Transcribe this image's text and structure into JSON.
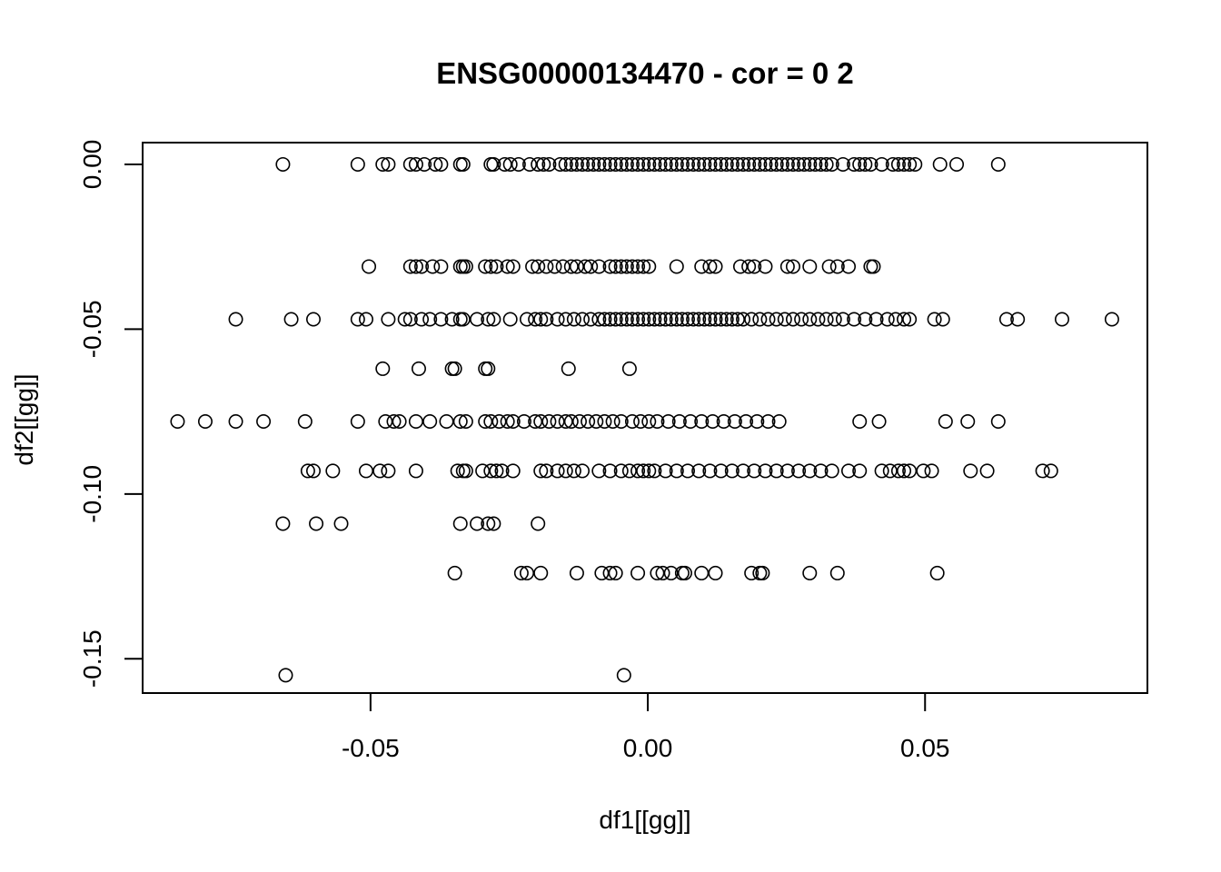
{
  "chart_data": {
    "type": "scatter",
    "title": "ENSG00000134470  - cor =  0 2",
    "xlabel": "df1[[gg]]",
    "ylabel": "df2[[gg]]",
    "xlim": [
      -0.0911,
      0.0901
    ],
    "ylim": [
      -0.1604,
      0.0066
    ],
    "x_ticks": [
      {
        "value": -0.05,
        "label": "-0.05"
      },
      {
        "value": 0.0,
        "label": "0.00"
      },
      {
        "value": 0.05,
        "label": "0.05"
      }
    ],
    "y_ticks": [
      {
        "value": 0.0,
        "label": "0.00"
      },
      {
        "value": -0.05,
        "label": "-0.05"
      },
      {
        "value": -0.1,
        "label": "-0.10"
      },
      {
        "value": -0.15,
        "label": "-0.15"
      }
    ],
    "grid": false,
    "legend": "none",
    "marker": "open-circle",
    "series": [
      {
        "rows": [
          {
            "y": 0.0,
            "x": [
              -0.0658,
              -0.0523,
              -0.0478,
              -0.0468,
              -0.0428,
              -0.0418,
              -0.0403,
              -0.0383,
              -0.0373,
              -0.0338,
              -0.0333,
              -0.0283,
              -0.0278,
              -0.0258,
              -0.0248,
              -0.0233,
              -0.0213,
              -0.0198,
              -0.0188,
              -0.0178,
              -0.0158,
              -0.0148,
              -0.0138,
              -0.0128,
              -0.0118,
              -0.0108,
              -0.0098,
              -0.0088,
              -0.0078,
              -0.0068,
              -0.0058,
              -0.0048,
              -0.0038,
              -0.0028,
              -0.0018,
              -0.0008,
              0.0002,
              0.0012,
              0.0022,
              0.0032,
              0.0042,
              0.0052,
              0.0062,
              0.0072,
              0.0082,
              0.0092,
              0.0102,
              0.0112,
              0.0122,
              0.0132,
              0.0142,
              0.0152,
              0.0162,
              0.0172,
              0.0182,
              0.0192,
              0.0202,
              0.0212,
              0.0222,
              0.0232,
              0.0242,
              0.0252,
              0.0262,
              0.0272,
              0.0282,
              0.0292,
              0.0302,
              0.0312,
              0.0322,
              0.0332,
              0.0352,
              0.0372,
              0.0382,
              0.0392,
              0.0402,
              0.0422,
              0.0442,
              0.0452,
              0.0462,
              0.0472,
              0.0482,
              0.0527,
              0.0557,
              0.0632
            ]
          },
          {
            "y": -0.031,
            "x": [
              -0.0503,
              -0.0428,
              -0.0418,
              -0.0408,
              -0.0388,
              -0.0373,
              -0.0338,
              -0.0333,
              -0.0328,
              -0.0293,
              -0.0283,
              -0.0273,
              -0.0253,
              -0.0243,
              -0.0208,
              -0.0198,
              -0.0183,
              -0.0168,
              -0.0153,
              -0.0138,
              -0.0128,
              -0.0113,
              -0.0103,
              -0.0088,
              -0.0068,
              -0.0058,
              -0.0048,
              -0.0038,
              -0.0028,
              -0.0018,
              -0.0008,
              0.0002,
              0.0052,
              0.0097,
              0.0112,
              0.0122,
              0.0167,
              0.0182,
              0.0192,
              0.0212,
              0.0252,
              0.0262,
              0.0292,
              0.0327,
              0.0342,
              0.0362,
              0.0402,
              0.0407
            ]
          },
          {
            "y": -0.047,
            "x": [
              -0.0743,
              -0.0643,
              -0.0603,
              -0.0523,
              -0.0508,
              -0.0468,
              -0.0438,
              -0.0428,
              -0.0408,
              -0.0393,
              -0.0373,
              -0.0353,
              -0.0338,
              -0.0333,
              -0.0308,
              -0.0288,
              -0.0278,
              -0.0248,
              -0.0218,
              -0.0203,
              -0.0193,
              -0.0183,
              -0.0163,
              -0.0148,
              -0.0133,
              -0.0118,
              -0.0103,
              -0.0088,
              -0.0078,
              -0.0068,
              -0.0058,
              -0.0048,
              -0.0038,
              -0.0028,
              -0.0018,
              -0.0008,
              0.0002,
              0.0012,
              0.0022,
              0.0032,
              0.0042,
              0.0052,
              0.0062,
              0.0072,
              0.0082,
              0.0092,
              0.0102,
              0.0112,
              0.0122,
              0.0132,
              0.0142,
              0.0152,
              0.0162,
              0.0172,
              0.0187,
              0.0202,
              0.0217,
              0.0232,
              0.0247,
              0.0262,
              0.0277,
              0.0292,
              0.0307,
              0.0322,
              0.0337,
              0.0352,
              0.0372,
              0.0392,
              0.0412,
              0.0432,
              0.0447,
              0.0462,
              0.0472,
              0.0517,
              0.0532,
              0.0647,
              0.0667,
              0.0747,
              0.0837
            ]
          },
          {
            "y": -0.062,
            "x": [
              -0.0478,
              -0.0413,
              -0.0353,
              -0.0348,
              -0.0293,
              -0.0288,
              -0.0143,
              -0.0033
            ]
          },
          {
            "y": -0.078,
            "x": [
              -0.0848,
              -0.0798,
              -0.0743,
              -0.0693,
              -0.0618,
              -0.0523,
              -0.0473,
              -0.0458,
              -0.0448,
              -0.0418,
              -0.0393,
              -0.0363,
              -0.0338,
              -0.0328,
              -0.0293,
              -0.0283,
              -0.0268,
              -0.0253,
              -0.0243,
              -0.0223,
              -0.0203,
              -0.0193,
              -0.0178,
              -0.0163,
              -0.0148,
              -0.0138,
              -0.0123,
              -0.0108,
              -0.0093,
              -0.0078,
              -0.0063,
              -0.0048,
              -0.0028,
              -0.0013,
              0.0002,
              0.0017,
              0.0037,
              0.0057,
              0.0077,
              0.0097,
              0.0117,
              0.0137,
              0.0157,
              0.0177,
              0.0197,
              0.0217,
              0.0237,
              0.0382,
              0.0417,
              0.0537,
              0.0577,
              0.0632
            ]
          },
          {
            "y": -0.093,
            "x": [
              -0.0613,
              -0.0603,
              -0.0568,
              -0.0508,
              -0.0483,
              -0.0468,
              -0.0418,
              -0.0343,
              -0.0333,
              -0.0328,
              -0.0298,
              -0.0283,
              -0.0273,
              -0.0263,
              -0.0243,
              -0.0193,
              -0.0183,
              -0.0163,
              -0.0148,
              -0.0133,
              -0.0118,
              -0.0088,
              -0.0068,
              -0.0048,
              -0.0033,
              -0.0018,
              -0.0008,
              0.0002,
              0.0012,
              0.0032,
              0.0052,
              0.0072,
              0.0092,
              0.0112,
              0.0132,
              0.0152,
              0.0172,
              0.0192,
              0.0212,
              0.0232,
              0.0252,
              0.0272,
              0.0292,
              0.0312,
              0.0332,
              0.0362,
              0.0382,
              0.0422,
              0.0437,
              0.0452,
              0.0462,
              0.0472,
              0.0497,
              0.0512,
              0.0582,
              0.0612,
              0.0712,
              0.0727
            ]
          },
          {
            "y": -0.109,
            "x": [
              -0.0658,
              -0.0598,
              -0.0553,
              -0.0338,
              -0.0308,
              -0.0288,
              -0.0278,
              -0.0198
            ]
          },
          {
            "y": -0.124,
            "x": [
              -0.0348,
              -0.0228,
              -0.0218,
              -0.0193,
              -0.0128,
              -0.0083,
              -0.0068,
              -0.0058,
              -0.0018,
              0.0017,
              0.0027,
              0.0042,
              0.0062,
              0.0067,
              0.0097,
              0.0122,
              0.0187,
              0.0202,
              0.0207,
              0.0292,
              0.0342,
              0.0522
            ]
          },
          {
            "y": -0.155,
            "x": [
              -0.0653,
              -0.0043
            ]
          }
        ]
      }
    ]
  }
}
